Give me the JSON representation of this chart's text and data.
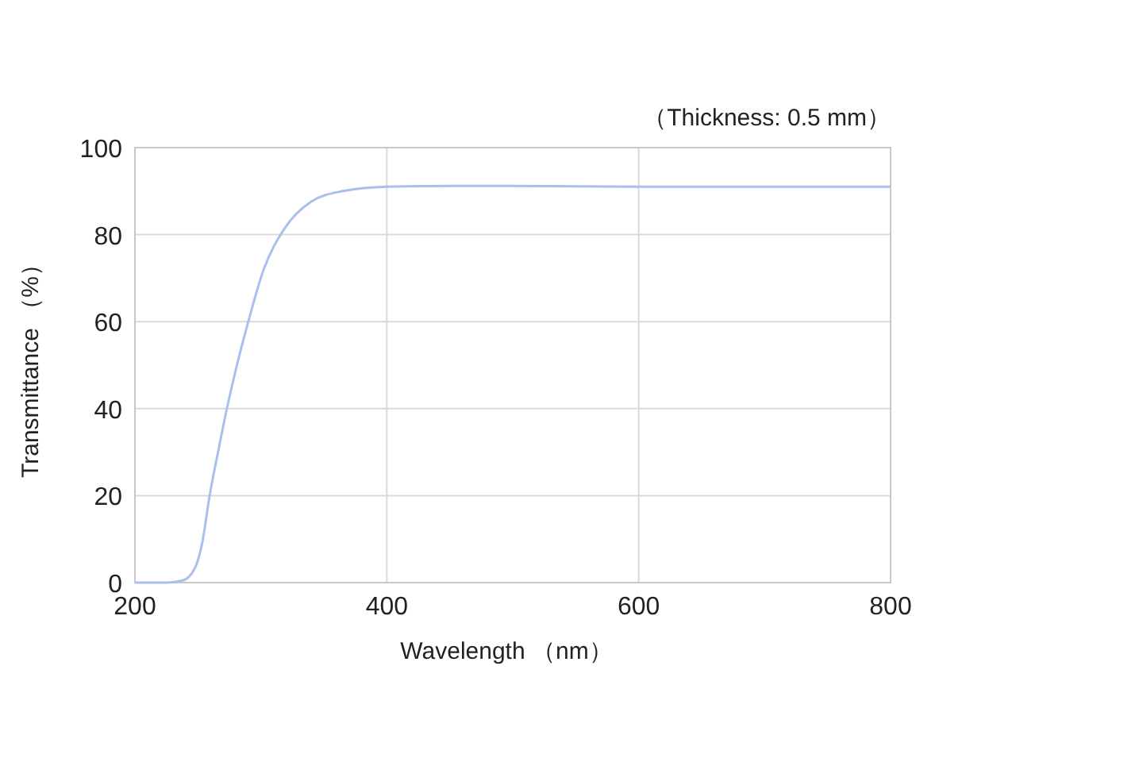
{
  "chart_data": {
    "type": "line",
    "title": "（Thickness: 0.5 mm）",
    "xlabel": "Wavelength （nm）",
    "ylabel": "Transmittance （%）",
    "x": [
      200,
      225,
      238,
      248,
      254,
      259,
      266,
      273,
      281,
      290,
      302,
      319,
      340,
      365,
      400,
      450,
      500,
      600,
      700,
      800
    ],
    "series": [
      {
        "color": "#a9c0ec",
        "values": [
          0,
          0,
          0.5,
          3.6,
          10,
          19.5,
          30,
          40,
          50,
          60,
          71.8,
          81.5,
          87.6,
          90,
          91,
          91.2,
          91.2,
          91,
          91,
          91
        ]
      }
    ],
    "xlim": [
      200,
      800
    ],
    "ylim": [
      0,
      100
    ],
    "xticks": [
      200,
      400,
      600,
      800
    ],
    "yticks": [
      0,
      20,
      40,
      60,
      80,
      100
    ],
    "grid": true,
    "marker": "none",
    "line_style": "solid"
  }
}
